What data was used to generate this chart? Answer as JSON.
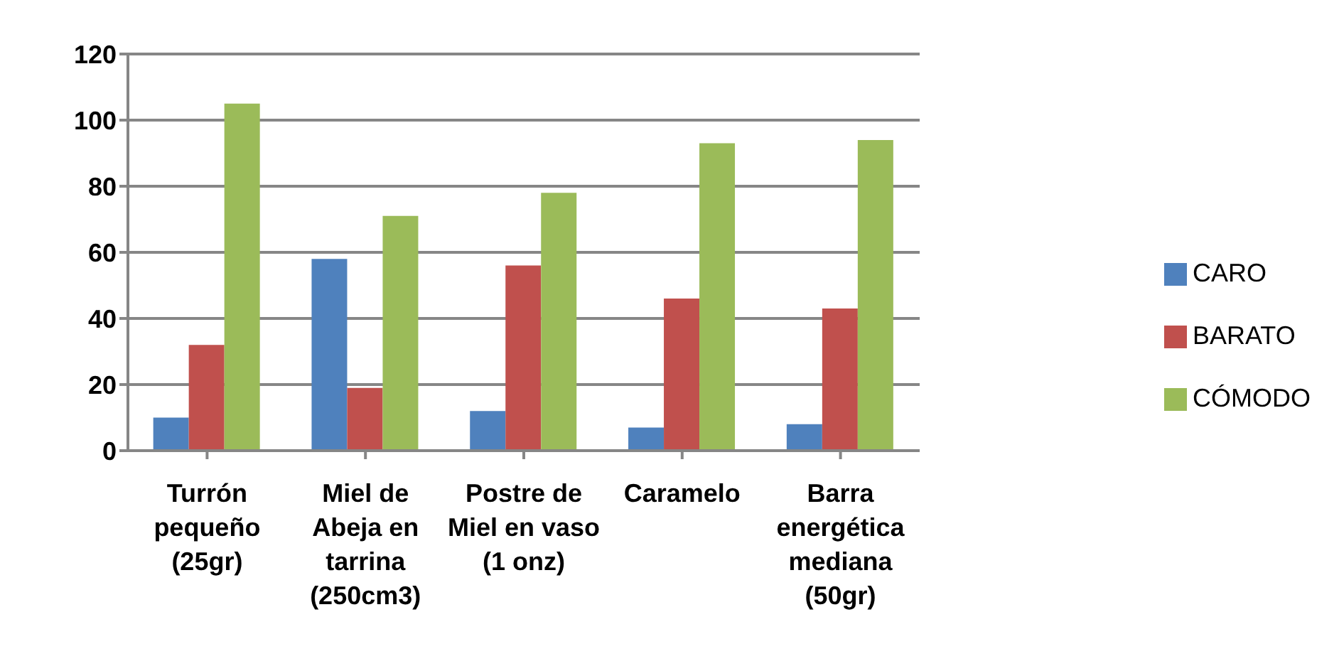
{
  "chart_data": {
    "type": "bar",
    "categories": [
      "Turrón pequeño (25gr)",
      "Miel de Abeja en tarrina (250cm3)",
      "Postre de Miel en vaso (1 onz)",
      "Caramelo",
      "Barra energética mediana (50gr)"
    ],
    "series": [
      {
        "name": "CARO",
        "color": "#4f81bd",
        "values": [
          10,
          58,
          12,
          7,
          8
        ]
      },
      {
        "name": "BARATO",
        "color": "#c0504d",
        "values": [
          32,
          19,
          56,
          46,
          43
        ]
      },
      {
        "name": "CÓMODO",
        "color": "#9bbb59",
        "values": [
          105,
          71,
          78,
          93,
          94
        ]
      }
    ],
    "ylim": [
      0,
      120
    ],
    "yticks": [
      0,
      20,
      40,
      60,
      80,
      100,
      120
    ],
    "grid": "y",
    "legend": "right"
  }
}
